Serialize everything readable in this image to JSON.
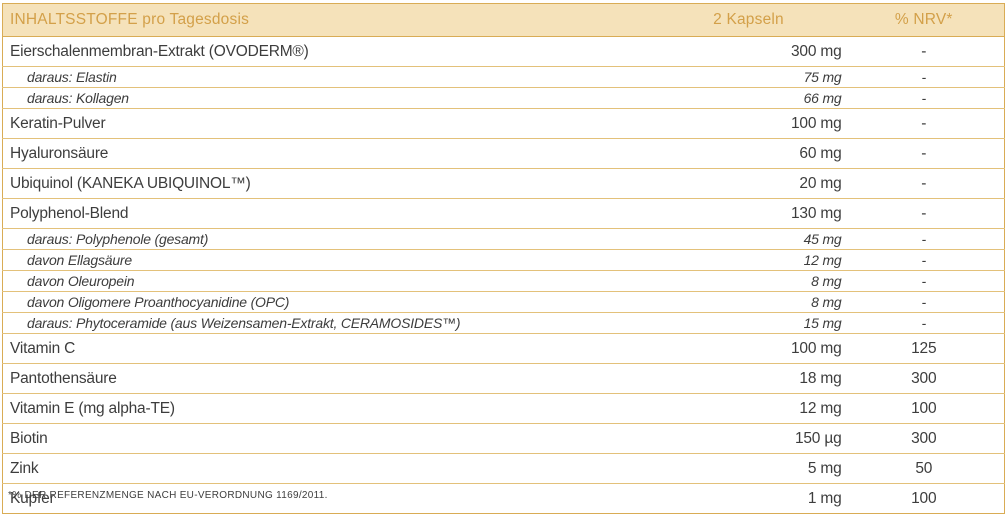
{
  "table": {
    "header": {
      "ingredients": "INHALTSSTOFFE pro Tagesdosis",
      "dose": "2 Kapseln",
      "nrv": "% NRV*"
    },
    "rows": [
      {
        "label": "Eierschalenmembran-Extrakt (OVODERM®)",
        "amount": "300 mg",
        "nrv": "-",
        "style": "main"
      },
      {
        "label": "daraus: Elastin",
        "amount": "75 mg",
        "nrv": "-",
        "style": "sub"
      },
      {
        "label": "daraus: Kollagen",
        "amount": "66 mg",
        "nrv": "-",
        "style": "sub"
      },
      {
        "label": "Keratin-Pulver",
        "amount": "100 mg",
        "nrv": "-",
        "style": "main"
      },
      {
        "label": "Hyaluronsäure",
        "amount": "60 mg",
        "nrv": "-",
        "style": "main"
      },
      {
        "label": "Ubiquinol (KANEKA UBIQUINOL™)",
        "amount": "20 mg",
        "nrv": "-",
        "style": "main"
      },
      {
        "label": "Polyphenol-Blend",
        "amount": "130 mg",
        "nrv": "-",
        "style": "main"
      },
      {
        "label": "daraus: Polyphenole (gesamt)",
        "amount": "45 mg",
        "nrv": "-",
        "style": "sub"
      },
      {
        "label": "davon Ellagsäure",
        "amount": "12 mg",
        "nrv": "-",
        "style": "sub"
      },
      {
        "label": "davon Oleuropein",
        "amount": "8 mg",
        "nrv": "-",
        "style": "sub"
      },
      {
        "label": "davon Oligomere Proanthocyanidine (OPC)",
        "amount": "8 mg",
        "nrv": "-",
        "style": "sub"
      },
      {
        "label": "daraus: Phytoceramide (aus Weizensamen-Extrakt, CERAMOSIDES™)",
        "amount": "15 mg",
        "nrv": "-",
        "style": "sub"
      },
      {
        "label": "Vitamin C",
        "amount": "100 mg",
        "nrv": "125",
        "style": "main"
      },
      {
        "label": "Pantothensäure",
        "amount": "18 mg",
        "nrv": "300",
        "style": "main"
      },
      {
        "label": "Vitamin E (mg alpha-TE)",
        "amount": "12 mg",
        "nrv": "100",
        "style": "main"
      },
      {
        "label": "Biotin",
        "amount": "150 µg",
        "nrv": "300",
        "style": "main"
      },
      {
        "label": "Zink",
        "amount": "5 mg",
        "nrv": "50",
        "style": "main"
      },
      {
        "label": "Kupfer",
        "amount": "1 mg",
        "nrv": "100",
        "style": "main"
      }
    ]
  },
  "footnote": "*% DER REFERENZMENGE NACH EU-VERORDNUNG 1169/2011.",
  "colors": {
    "header_bg": "#f5e2ba",
    "header_text": "#d3a049",
    "border": "#e3c17a",
    "outer_border": "#d9ac55",
    "text": "#3d3d3d"
  }
}
